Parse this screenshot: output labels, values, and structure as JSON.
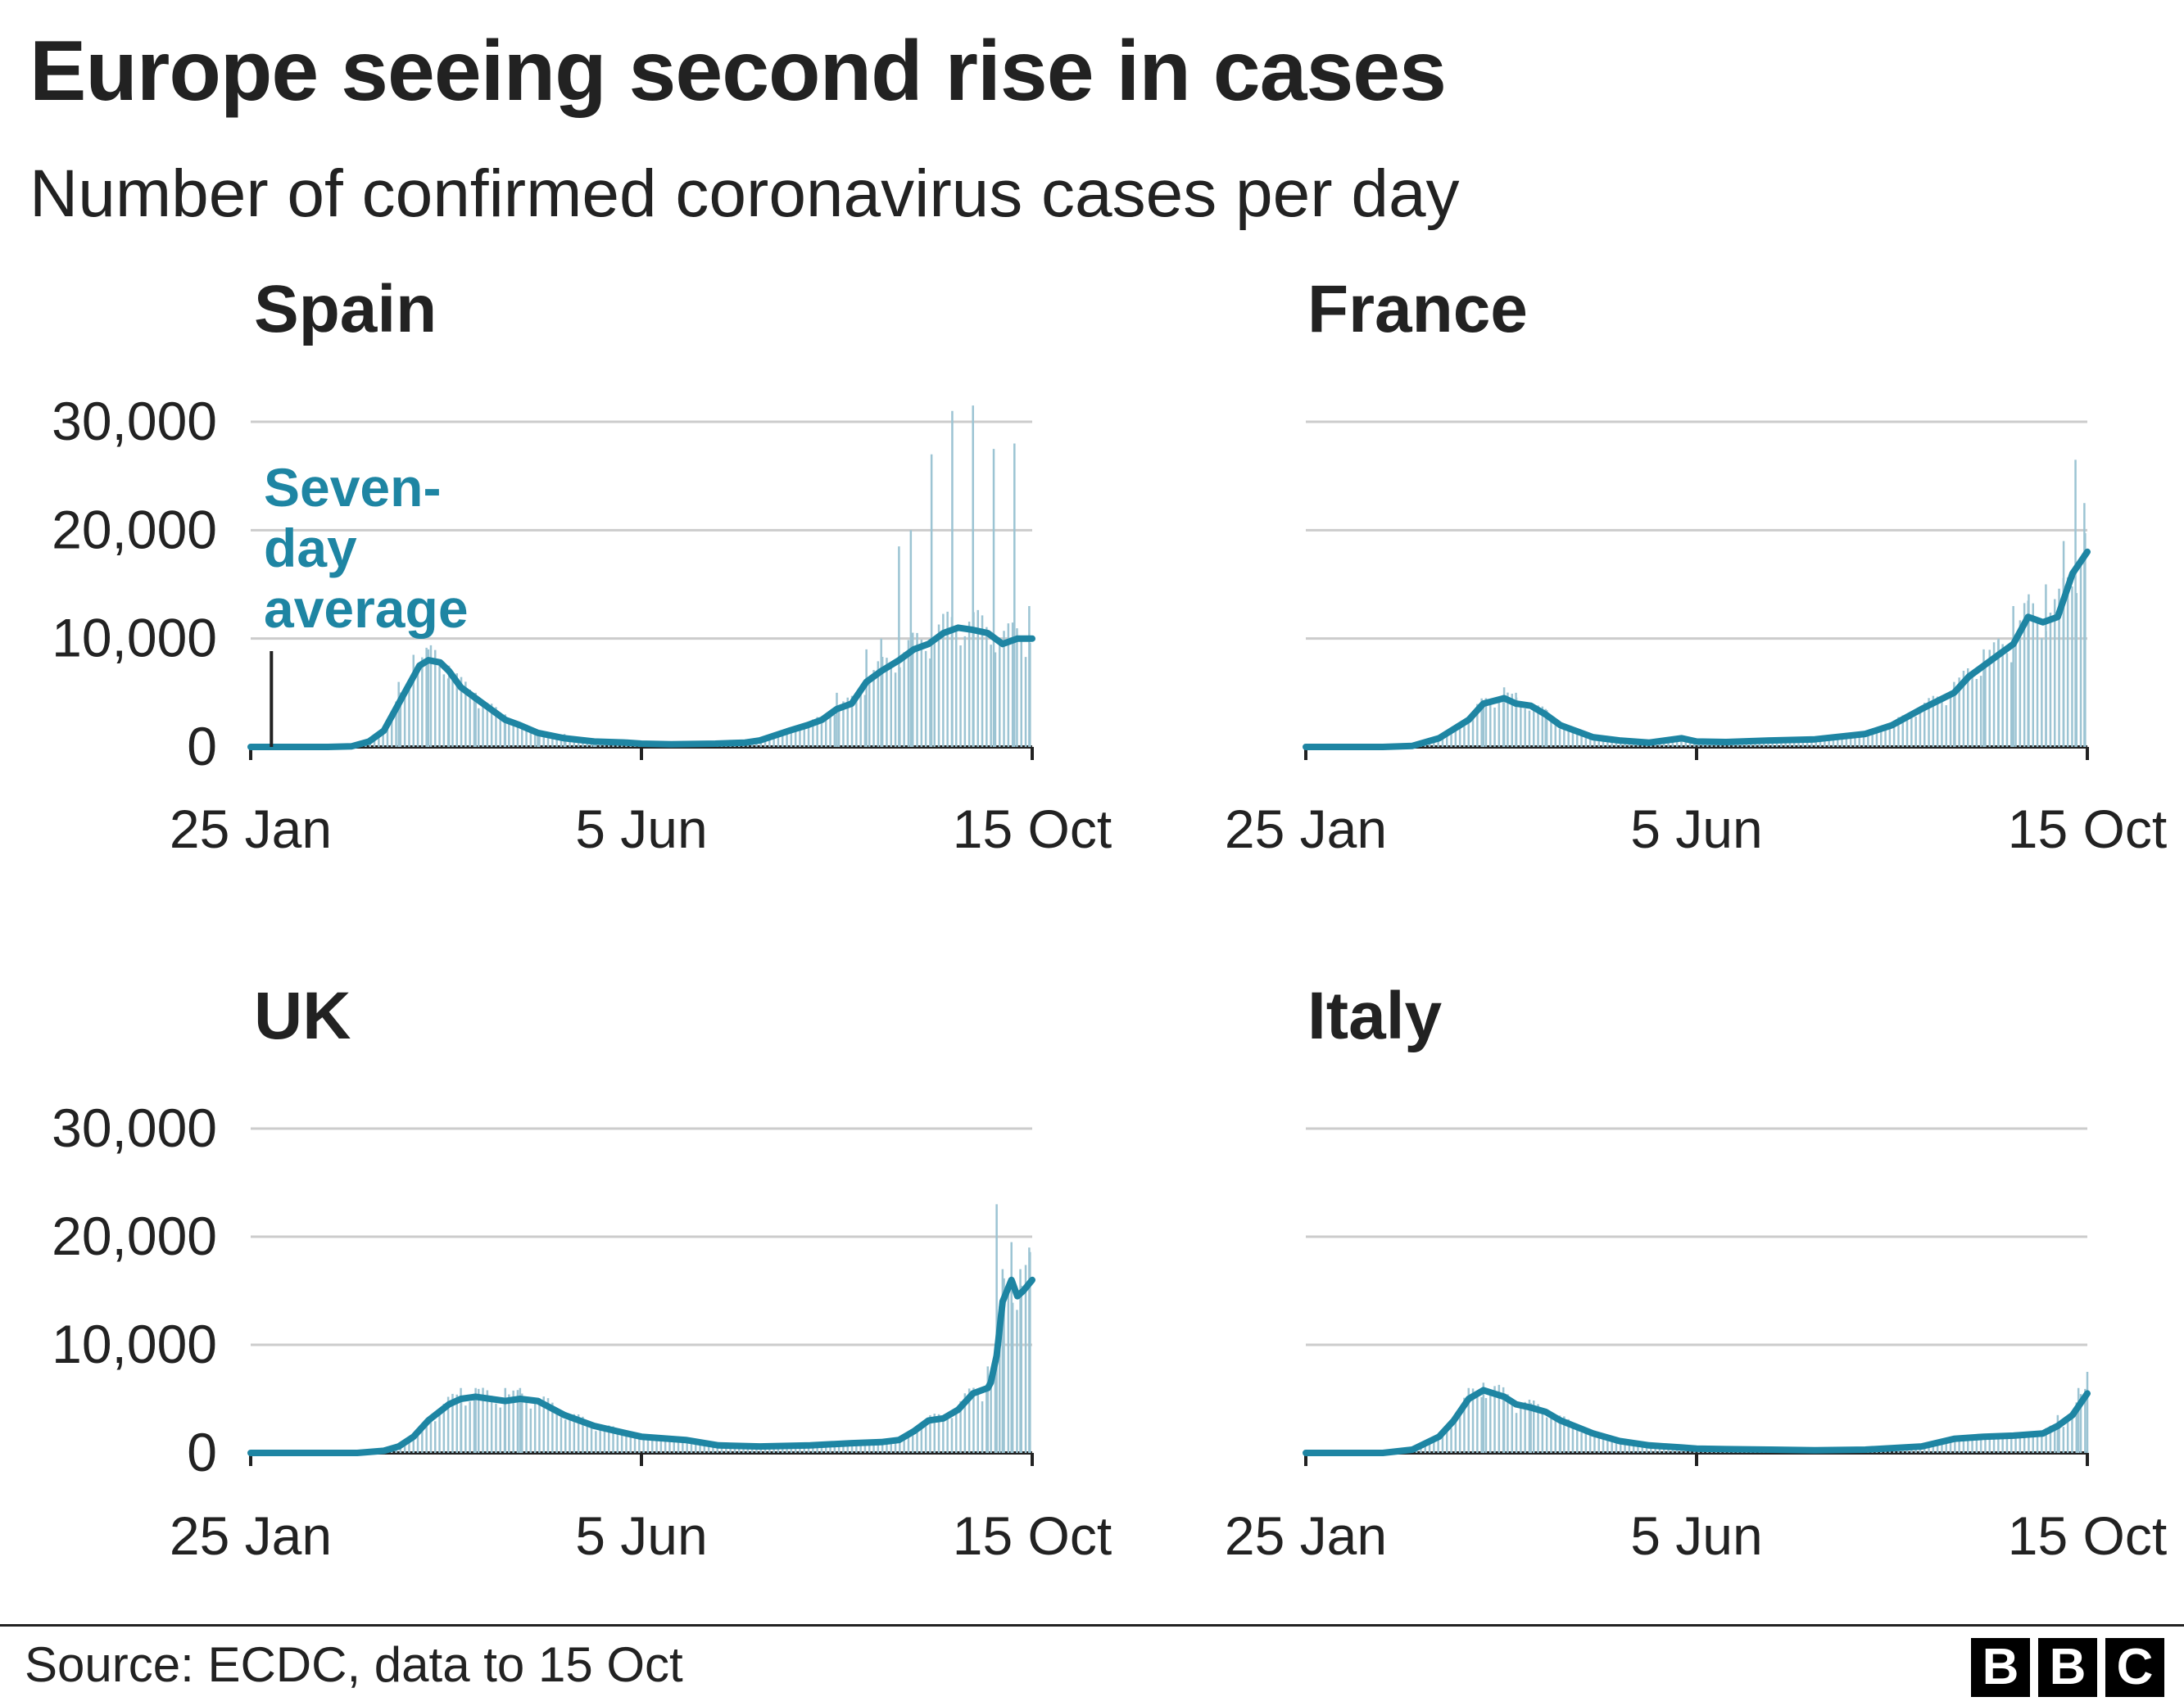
{
  "title": "Europe seeing second rise in cases",
  "subtitle": "Number of confirmed coronavirus cases per day",
  "source": "Source: ECDC, data to 15 Oct",
  "logo": [
    "B",
    "B",
    "C"
  ],
  "colors": {
    "line": "#1e85a3",
    "bar": "#9cc4d3",
    "grid": "#cccccc",
    "axis": "#222222",
    "text": "#222222"
  },
  "chart_data": [
    {
      "type": "line",
      "title": "Spain",
      "x_ticks": [
        "25 Jan",
        "5 Jun",
        "15 Oct"
      ],
      "y_ticks": [
        "0",
        "10,000",
        "20,000",
        "30,000"
      ],
      "ylim": [
        0,
        30000
      ],
      "grid": true,
      "annotation": {
        "text": [
          "Seven-",
          "day",
          "average"
        ],
        "x": "1 Feb"
      },
      "series": [
        {
          "kind": "line",
          "x": [
            "25 Jan",
            "10 Feb",
            "20 Feb",
            "28 Feb",
            "5 Mar",
            "10 Mar",
            "15 Mar",
            "20 Mar",
            "22 Mar",
            "25 Mar",
            "29 Mar",
            "1 Apr",
            "5 Apr",
            "10 Apr",
            "15 Apr",
            "20 Apr",
            "25 Apr",
            "1 May",
            "10 May",
            "20 May",
            "31 May",
            "5 Jun",
            "15 Jun",
            "30 Jun",
            "10 Jul",
            "15 Jul",
            "25 Jul",
            "31 Jul",
            "5 Aug",
            "10 Aug",
            "15 Aug",
            "20 Aug",
            "25 Aug",
            "31 Aug",
            "5 Sep",
            "10 Sep",
            "15 Sep",
            "20 Sep",
            "25 Sep",
            "30 Sep",
            "5 Oct",
            "10 Oct",
            "15 Oct"
          ],
          "values": [
            0,
            0,
            0,
            50,
            500,
            1500,
            4000,
            6500,
            7500,
            8000,
            7800,
            7000,
            5500,
            4500,
            3500,
            2500,
            2000,
            1300,
            800,
            500,
            400,
            300,
            250,
            300,
            400,
            600,
            1500,
            2000,
            2500,
            3500,
            4000,
            6000,
            7000,
            8000,
            9000,
            9500,
            10500,
            11000,
            10800,
            10500,
            9500,
            10000,
            10000
          ]
        },
        {
          "kind": "bars",
          "note": "daily cases",
          "x": [
            "15 Mar",
            "20 Mar",
            "25 Mar",
            "1 Apr",
            "10 Apr",
            "20 Apr",
            "1 May",
            "10 May",
            "20 May",
            "10 Aug",
            "20 Aug",
            "25 Aug",
            "31 Aug",
            "4 Sep",
            "11 Sep",
            "18 Sep",
            "25 Sep",
            "2 Oct",
            "9 Oct",
            "14 Oct"
          ],
          "values": [
            6000,
            8500,
            9000,
            7500,
            5000,
            3000,
            1500,
            1200,
            800,
            5000,
            9000,
            10000,
            18500,
            20000,
            27000,
            31000,
            31500,
            27500,
            28000,
            13000
          ]
        }
      ]
    },
    {
      "type": "line",
      "title": "France",
      "x_ticks": [
        "25 Jan",
        "5 Jun",
        "15 Oct"
      ],
      "y_ticks": [
        "0",
        "10,000",
        "20,000",
        "30,000"
      ],
      "ylim": [
        0,
        30000
      ],
      "grid": true,
      "series": [
        {
          "kind": "line",
          "x": [
            "25 Jan",
            "20 Feb",
            "1 Mar",
            "10 Mar",
            "20 Mar",
            "25 Mar",
            "1 Apr",
            "5 Apr",
            "10 Apr",
            "15 Apr",
            "20 Apr",
            "25 Apr",
            "1 May",
            "10 May",
            "20 May",
            "31 May",
            "5 Jun",
            "15 Jun",
            "30 Jun",
            "15 Jul",
            "1 Aug",
            "10 Aug",
            "20 Aug",
            "31 Aug",
            "5 Sep",
            "10 Sep",
            "15 Sep",
            "20 Sep",
            "25 Sep",
            "30 Sep",
            "5 Oct",
            "10 Oct",
            "15 Oct"
          ],
          "values": [
            0,
            0,
            100,
            800,
            2500,
            4000,
            4500,
            4000,
            3800,
            3000,
            2000,
            1500,
            900,
            600,
            400,
            800,
            500,
            450,
            600,
            700,
            1200,
            2000,
            3500,
            5000,
            6500,
            7500,
            8500,
            9500,
            12000,
            11500,
            12000,
            16000,
            18000
          ]
        },
        {
          "kind": "bars",
          "note": "daily cases",
          "x": [
            "25 Mar",
            "1 Apr",
            "5 Apr",
            "15 Apr",
            "31 Aug",
            "10 Sep",
            "15 Sep",
            "20 Sep",
            "25 Sep",
            "1 Oct",
            "7 Oct",
            "11 Oct",
            "14 Oct"
          ],
          "values": [
            4200,
            5500,
            5000,
            3500,
            6000,
            9000,
            10000,
            13000,
            13500,
            15000,
            19000,
            26500,
            22500
          ]
        }
      ]
    },
    {
      "type": "line",
      "title": "UK",
      "x_ticks": [
        "25 Jan",
        "5 Jun",
        "15 Oct"
      ],
      "y_ticks": [
        "0",
        "10,000",
        "20,000",
        "30,000"
      ],
      "ylim": [
        0,
        30000
      ],
      "grid": true,
      "series": [
        {
          "kind": "line",
          "x": [
            "25 Jan",
            "1 Mar",
            "10 Mar",
            "15 Mar",
            "20 Mar",
            "25 Mar",
            "1 Apr",
            "5 Apr",
            "10 Apr",
            "20 Apr",
            "25 Apr",
            "1 May",
            "10 May",
            "20 May",
            "31 May",
            "5 Jun",
            "20 Jun",
            "1 Jul",
            "15 Jul",
            "1 Aug",
            "15 Aug",
            "25 Aug",
            "31 Aug",
            "5 Sep",
            "10 Sep",
            "15 Sep",
            "20 Sep",
            "25 Sep",
            "30 Sep",
            "1 Oct",
            "3 Oct",
            "5 Oct",
            "8 Oct",
            "10 Oct",
            "12 Oct",
            "15 Oct"
          ],
          "values": [
            0,
            0,
            200,
            600,
            1500,
            3000,
            4500,
            5000,
            5200,
            4800,
            5000,
            4800,
            3500,
            2500,
            1800,
            1500,
            1200,
            700,
            600,
            700,
            900,
            1000,
            1200,
            2000,
            3000,
            3200,
            4000,
            5500,
            6000,
            6500,
            9000,
            14000,
            16000,
            14500,
            15000,
            16000
          ]
        },
        {
          "kind": "bars",
          "note": "daily cases",
          "x": [
            "5 Apr",
            "10 Apr",
            "20 Apr",
            "25 Apr",
            "30 Sep",
            "3 Oct",
            "5 Oct",
            "8 Oct",
            "11 Oct",
            "14 Oct"
          ],
          "values": [
            6000,
            6000,
            6000,
            6000,
            8000,
            23000,
            17000,
            19500,
            17000,
            19000
          ]
        }
      ]
    },
    {
      "type": "line",
      "title": "Italy",
      "x_ticks": [
        "25 Jan",
        "5 Jun",
        "15 Oct"
      ],
      "y_ticks": [
        "0",
        "10,000",
        "20,000",
        "30,000"
      ],
      "ylim": [
        0,
        30000
      ],
      "grid": true,
      "series": [
        {
          "kind": "line",
          "x": [
            "25 Jan",
            "20 Feb",
            "1 Mar",
            "10 Mar",
            "15 Mar",
            "20 Mar",
            "25 Mar",
            "1 Apr",
            "5 Apr",
            "10 Apr",
            "15 Apr",
            "20 Apr",
            "1 May",
            "10 May",
            "20 May",
            "31 May",
            "5 Jun",
            "15 Jun",
            "30 Jun",
            "15 Jul",
            "1 Aug",
            "20 Aug",
            "31 Aug",
            "10 Sep",
            "20 Sep",
            "30 Sep",
            "5 Oct",
            "10 Oct",
            "15 Oct"
          ],
          "values": [
            0,
            0,
            300,
            1500,
            3000,
            5000,
            5800,
            5200,
            4500,
            4200,
            3800,
            3000,
            1800,
            1100,
            700,
            500,
            400,
            350,
            300,
            250,
            300,
            600,
            1300,
            1500,
            1600,
            1800,
            2500,
            3500,
            5500
          ]
        },
        {
          "kind": "bars",
          "note": "daily cases",
          "x": [
            "20 Mar",
            "25 Mar",
            "1 Apr",
            "10 Apr",
            "20 Apr",
            "5 Oct",
            "12 Oct",
            "15 Oct"
          ],
          "values": [
            6000,
            6500,
            5500,
            4600,
            3300,
            3500,
            6000,
            7500
          ]
        }
      ]
    }
  ]
}
